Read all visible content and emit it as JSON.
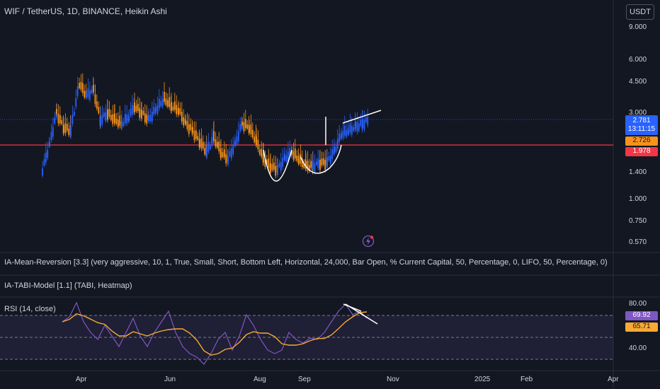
{
  "header": {
    "title": "WIF / TetherUS, 1D, BINANCE, Heikin Ashi",
    "currency": "USDT"
  },
  "price_axis": {
    "labels": [
      "9.000",
      "6.000",
      "4.500",
      "3.000",
      "1.400",
      "1.000",
      "0.750",
      "0.570"
    ],
    "current_price": "2.781",
    "countdown": "13:11:15",
    "badge_orange": "2.726",
    "badge_red": "1.978"
  },
  "indicators": {
    "mean_reversion": "IA-Mean-Reversion [3.3] (very aggressive, 10, 1, True, Small, Short, Bottom Left, Horizontal, 24,000, Bar Open, % Current Capital, 50, Percentage, 0, LIFO, 50, Percentage, 0)",
    "tabi": "IA-TABI-Model [1.1] (TABI, Heatmap)",
    "rsi": "RSI (14, close)"
  },
  "rsi_axis": {
    "labels": [
      "80.00",
      "40.00"
    ],
    "rsi_value": "69.92",
    "rsi_ma_value": "65.71"
  },
  "time_axis": {
    "labels": [
      "Apr",
      "Jun",
      "Aug",
      "Sep",
      "Nov",
      "2025",
      "Feb",
      "Apr"
    ]
  },
  "colors": {
    "background": "#131722",
    "bull": "#2962ff",
    "bear": "#f7931a",
    "support_line": "#f23645",
    "rsi_line": "#7e57c2",
    "rsi_ma": "#f7a934"
  },
  "icons": {
    "alert": "lightning-icon"
  }
}
